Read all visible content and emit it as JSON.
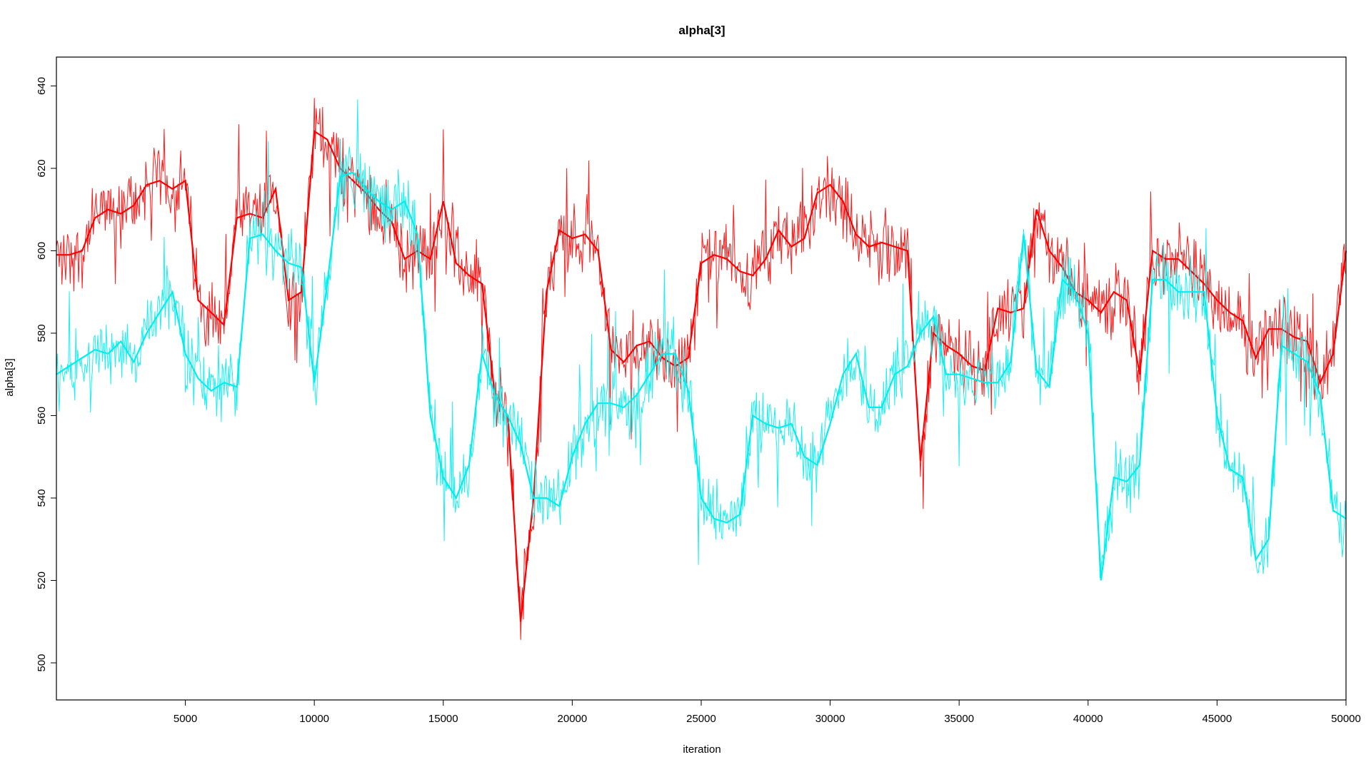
{
  "chart_data": {
    "type": "line",
    "title": "alpha[3]",
    "xlabel": "iteration",
    "ylabel": "alpha[3]",
    "xlim": [
      1,
      50000
    ],
    "ylim": [
      491,
      647
    ],
    "xticks": [
      5000,
      10000,
      15000,
      20000,
      25000,
      30000,
      35000,
      40000,
      45000,
      50000
    ],
    "yticks": [
      500,
      520,
      540,
      560,
      580,
      600,
      620,
      640
    ],
    "grid": false,
    "legend": "none",
    "series": [
      {
        "color": "#ff0000",
        "x": [
          0,
          500,
          1000,
          1500,
          2000,
          2500,
          3000,
          3500,
          4000,
          4500,
          5000,
          5500,
          6000,
          6500,
          7000,
          7500,
          8000,
          8500,
          9000,
          9500,
          10000,
          10500,
          11000,
          11500,
          12000,
          12500,
          13000,
          13500,
          14000,
          14500,
          15000,
          15500,
          16000,
          16500,
          17000,
          17500,
          18000,
          18500,
          19000,
          19500,
          20000,
          20500,
          21000,
          21500,
          22000,
          22500,
          23000,
          23500,
          24000,
          24500,
          25000,
          25500,
          26000,
          26500,
          27000,
          27500,
          28000,
          28500,
          29000,
          29500,
          30000,
          30500,
          31000,
          31500,
          32000,
          32500,
          33000,
          33500,
          34000,
          34500,
          35000,
          35500,
          36000,
          36500,
          37000,
          37500,
          38000,
          38500,
          39000,
          39500,
          40000,
          40500,
          41000,
          41500,
          42000,
          42500,
          43000,
          43500,
          44000,
          44500,
          45000,
          45500,
          46000,
          46500,
          47000,
          47500,
          48000,
          48500,
          49000,
          49500,
          50000
        ],
        "y": [
          599,
          599,
          600,
          608,
          610,
          609,
          611,
          616,
          617,
          615,
          617,
          588,
          585,
          582,
          608,
          609,
          608,
          615,
          588,
          590,
          629,
          627,
          620,
          617,
          614,
          610,
          607,
          598,
          600,
          598,
          612,
          597,
          594,
          592,
          565,
          560,
          510,
          540,
          590,
          605,
          603,
          604,
          600,
          576,
          573,
          577,
          578,
          574,
          572,
          574,
          597,
          599,
          598,
          595,
          594,
          598,
          605,
          601,
          603,
          614,
          616,
          612,
          604,
          601,
          602,
          601,
          600,
          549,
          580,
          577,
          575,
          572,
          571,
          586,
          585,
          586,
          610,
          600,
          596,
          590,
          588,
          585,
          590,
          588,
          570,
          600,
          598,
          598,
          595,
          592,
          588,
          585,
          583,
          574,
          581,
          581,
          579,
          578,
          568,
          575,
          600
        ]
      },
      {
        "color": "#00eeee",
        "x": [
          0,
          500,
          1000,
          1500,
          2000,
          2500,
          3000,
          3500,
          4000,
          4500,
          5000,
          5500,
          6000,
          6500,
          7000,
          7500,
          8000,
          8500,
          9000,
          9500,
          10000,
          10500,
          11000,
          11500,
          12000,
          12500,
          13000,
          13500,
          14000,
          14500,
          15000,
          15500,
          16000,
          16500,
          17000,
          17500,
          18000,
          18500,
          19000,
          19500,
          20000,
          20500,
          21000,
          21500,
          22000,
          22500,
          23000,
          23500,
          24000,
          24500,
          25000,
          25500,
          26000,
          26500,
          27000,
          27500,
          28000,
          28500,
          29000,
          29500,
          30000,
          30500,
          31000,
          31500,
          32000,
          32500,
          33000,
          33500,
          34000,
          34500,
          35000,
          35500,
          36000,
          36500,
          37000,
          37500,
          38000,
          38500,
          39000,
          39500,
          40000,
          40500,
          41000,
          41500,
          42000,
          42500,
          43000,
          43500,
          44000,
          44500,
          45000,
          45500,
          46000,
          46500,
          47000,
          47500,
          48000,
          48500,
          49000,
          49500,
          50000
        ],
        "y": [
          570,
          572,
          574,
          576,
          575,
          578,
          573,
          580,
          585,
          590,
          575,
          569,
          566,
          568,
          567,
          603,
          604,
          600,
          597,
          596,
          568,
          592,
          618,
          619,
          615,
          612,
          610,
          612,
          604,
          560,
          545,
          540,
          548,
          575,
          565,
          560,
          553,
          540,
          540,
          538,
          550,
          558,
          563,
          563,
          562,
          565,
          570,
          575,
          575,
          566,
          540,
          535,
          534,
          536,
          560,
          558,
          557,
          558,
          550,
          548,
          558,
          570,
          575,
          562,
          562,
          570,
          572,
          580,
          584,
          570,
          570,
          569,
          568,
          568,
          573,
          604,
          571,
          567,
          593,
          590,
          580,
          520,
          545,
          544,
          548,
          593,
          593,
          590,
          590,
          590,
          560,
          547,
          545,
          525,
          530,
          577,
          575,
          573,
          565,
          537,
          535
        ]
      }
    ]
  }
}
